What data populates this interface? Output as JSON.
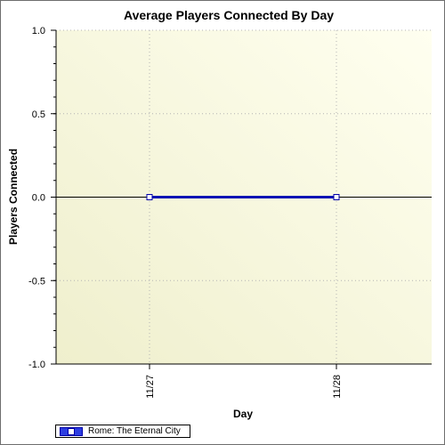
{
  "chart_data": {
    "type": "line",
    "title": "Average Players Connected By Day",
    "xlabel": "Day",
    "ylabel": "Players Connected",
    "categories": [
      "11/27",
      "11/28"
    ],
    "yticks": [
      "1.0",
      "0.5",
      "0.0",
      "-0.5",
      "-1.0"
    ],
    "ylim": [
      -1.0,
      1.0
    ],
    "grid": true,
    "legend_position": "bottom-left",
    "series": [
      {
        "name": "Rome: The Eternal City",
        "values": [
          0,
          0
        ],
        "color": "#0a14b4"
      }
    ]
  }
}
